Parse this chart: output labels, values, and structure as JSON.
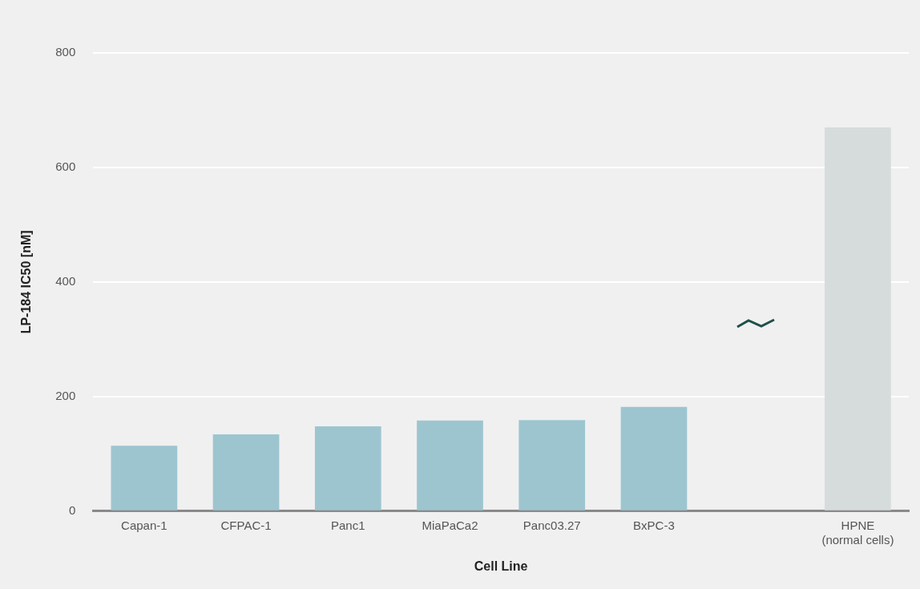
{
  "chart_data": {
    "type": "bar",
    "xlabel": "Cell Line",
    "ylabel": "LP-184 IC50 [nM]",
    "categories": [
      "Capan-1",
      "CFPAC-1",
      "Panc1",
      "MiaPaCa2",
      "Panc03.27",
      "BxPC-3",
      null,
      "HPNE\n(normal cells)"
    ],
    "values": [
      114,
      134,
      148,
      158,
      159,
      182,
      null,
      670
    ],
    "colors": [
      "#9dc5d0",
      "#9dc5d0",
      "#9dc5d0",
      "#9dc5d0",
      "#9dc5d0",
      "#9dc5d0",
      null,
      "#d6dcdc"
    ],
    "ylim": [
      0,
      800
    ],
    "yticks": [
      0,
      200,
      400,
      600,
      800
    ],
    "grid": "y",
    "legend": false
  }
}
